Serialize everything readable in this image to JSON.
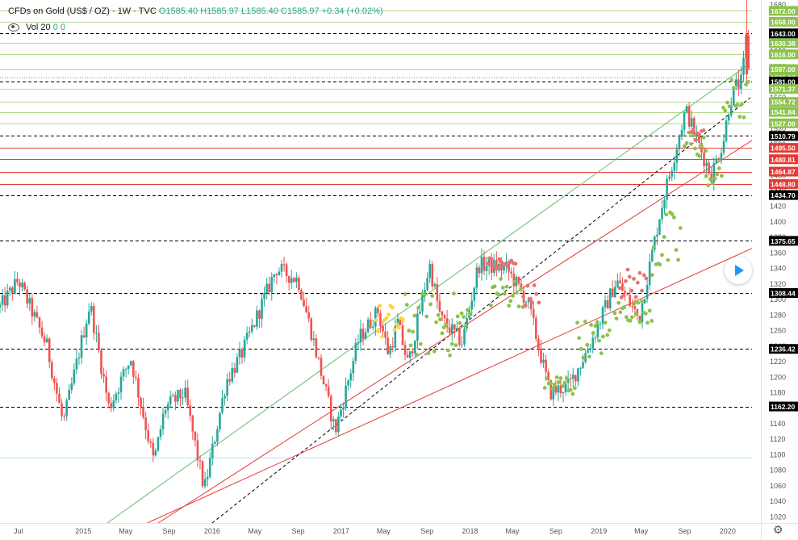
{
  "header": {
    "symbol": "CFDs on Gold (US$ / OZ) · 1W · TVC",
    "ohlc": "O1585.40  H1585.97  L1585.40  C1585.97  +0.34 (+0.02%)",
    "vol_label": "Vol 20",
    "vol_values": "0  0"
  },
  "colors": {
    "up": "#26a69a",
    "down": "#ef5350",
    "green_line": "#4caf50",
    "red_line": "#e53935",
    "price_tag": "#000000",
    "green_tag": "#8bc34a",
    "red_tag": "#e53935",
    "dot_green": "#8bc34a",
    "dot_red": "#e57373",
    "dot_yellow": "#fdd835"
  },
  "chart_data": {
    "type": "candlestick",
    "x_ticks": [
      {
        "label": "Jul",
        "date": "2014-07-01"
      },
      {
        "label": "2015",
        "date": "2015-01-01"
      },
      {
        "label": "May",
        "date": "2015-05-01"
      },
      {
        "label": "Sep",
        "date": "2015-09-01"
      },
      {
        "label": "2016",
        "date": "2016-01-01"
      },
      {
        "label": "May",
        "date": "2016-05-01"
      },
      {
        "label": "Sep",
        "date": "2016-09-01"
      },
      {
        "label": "2017",
        "date": "2017-01-01"
      },
      {
        "label": "May",
        "date": "2017-05-01"
      },
      {
        "label": "Sep",
        "date": "2017-09-01"
      },
      {
        "label": "2018",
        "date": "2018-01-01"
      },
      {
        "label": "May",
        "date": "2018-05-01"
      },
      {
        "label": "Sep",
        "date": "2018-09-01"
      },
      {
        "label": "2019",
        "date": "2019-01-01"
      },
      {
        "label": "May",
        "date": "2019-05-01"
      },
      {
        "label": "Sep",
        "date": "2019-09-01"
      },
      {
        "label": "2020",
        "date": "2020-01-01"
      }
    ],
    "y_ticks": [
      1020,
      1040,
      1060,
      1080,
      1100,
      1120,
      1140,
      1160,
      1180,
      1200,
      1220,
      1240,
      1260,
      1280,
      1300,
      1320,
      1340,
      1360,
      1380,
      1400,
      1420,
      1440,
      1460,
      1480,
      1500,
      1520,
      1540,
      1560,
      1580,
      1600,
      1620,
      1640,
      1660,
      1680
    ],
    "ylim": [
      1012,
      1686
    ],
    "xlim": [
      "2014-05-10",
      "2020-03-10"
    ],
    "close_path": [
      [
        "2014-05-10",
        1290
      ],
      [
        "2014-07-01",
        1325
      ],
      [
        "2014-09-20",
        1240
      ],
      [
        "2014-11-05",
        1140
      ],
      [
        "2015-01-20",
        1295
      ],
      [
        "2015-03-15",
        1160
      ],
      [
        "2015-05-15",
        1225
      ],
      [
        "2015-07-20",
        1090
      ],
      [
        "2015-08-20",
        1160
      ],
      [
        "2015-10-15",
        1180
      ],
      [
        "2015-12-10",
        1055
      ],
      [
        "2016-02-10",
        1195
      ],
      [
        "2016-03-25",
        1230
      ],
      [
        "2016-07-01",
        1340
      ],
      [
        "2016-09-01",
        1325
      ],
      [
        "2016-10-10",
        1255
      ],
      [
        "2016-12-15",
        1130
      ],
      [
        "2017-02-20",
        1250
      ],
      [
        "2017-04-15",
        1285
      ],
      [
        "2017-05-15",
        1230
      ],
      [
        "2017-06-10",
        1270
      ],
      [
        "2017-07-10",
        1215
      ],
      [
        "2017-09-08",
        1345
      ],
      [
        "2017-10-10",
        1275
      ],
      [
        "2017-12-10",
        1245
      ],
      [
        "2018-01-25",
        1345
      ],
      [
        "2018-04-15",
        1340
      ],
      [
        "2018-06-15",
        1295
      ],
      [
        "2018-08-15",
        1180
      ],
      [
        "2018-10-10",
        1190
      ],
      [
        "2018-12-10",
        1245
      ],
      [
        "2019-02-20",
        1325
      ],
      [
        "2019-04-25",
        1275
      ],
      [
        "2019-06-25",
        1415
      ],
      [
        "2019-09-04",
        1545
      ],
      [
        "2019-10-15",
        1495
      ],
      [
        "2019-11-15",
        1460
      ],
      [
        "2019-12-20",
        1505
      ],
      [
        "2020-01-07",
        1555
      ],
      [
        "2020-01-25",
        1575
      ],
      [
        "2020-02-10",
        1580
      ],
      [
        "2020-02-24",
        1643
      ],
      [
        "2020-03-02",
        1586
      ]
    ],
    "horizontal_levels": [
      {
        "value": "1672.00",
        "kind": "green",
        "style": "solid"
      },
      {
        "value": "1658.00",
        "kind": "green",
        "style": "solid"
      },
      {
        "value": "1643.00",
        "kind": "black",
        "style": "dashed"
      },
      {
        "value": "1630.38",
        "kind": "green",
        "style": "solid"
      },
      {
        "value": "1616.00",
        "kind": "green",
        "style": "solid"
      },
      {
        "value": "1597.00",
        "kind": "green",
        "style": "solid"
      },
      {
        "value": "1585.97",
        "kind": "current",
        "style": "dotted"
      },
      {
        "value": "1581.00",
        "kind": "black",
        "style": "dashed"
      },
      {
        "value": "1571.37",
        "kind": "green",
        "style": "solid"
      },
      {
        "value": "1554.72",
        "kind": "green",
        "style": "solid"
      },
      {
        "value": "1541.84",
        "kind": "green",
        "style": "solid"
      },
      {
        "value": "1527.09",
        "kind": "green",
        "style": "solid"
      },
      {
        "value": "1510.79",
        "kind": "black",
        "style": "dashed"
      },
      {
        "value": "1495.50",
        "kind": "red",
        "style": "solid"
      },
      {
        "value": "1480.81",
        "kind": "red",
        "style": "solid"
      },
      {
        "value": "1464.87",
        "kind": "red",
        "style": "solid"
      },
      {
        "value": "1448.80",
        "kind": "red",
        "style": "solid"
      },
      {
        "value": "1434.70",
        "kind": "black",
        "style": "dashed"
      },
      {
        "value": "1375.65",
        "kind": "black",
        "style": "dashed"
      },
      {
        "value": "1308.44",
        "kind": "black",
        "style": "dashed"
      },
      {
        "value": "1236.42",
        "kind": "black",
        "style": "dashed"
      },
      {
        "value": "1162.20",
        "kind": "black",
        "style": "dashed"
      }
    ],
    "trend_lines": [
      {
        "color": "green",
        "style": "solid",
        "p1": [
          "2015-03-10",
          1012
        ],
        "p2": [
          "2020-02-20",
          1600
        ]
      },
      {
        "color": "black",
        "style": "dashed",
        "p1": [
          "2016-01-01",
          1012
        ],
        "p2": [
          "2020-03-05",
          1560
        ]
      },
      {
        "color": "red",
        "style": "solid",
        "p1": [
          "2015-08-01",
          1012
        ],
        "p2": [
          "2020-03-10",
          1505
        ]
      },
      {
        "color": "red",
        "style": "solid",
        "p1": [
          "2015-07-01",
          1012
        ],
        "p2": [
          "2020-03-10",
          1366
        ]
      }
    ],
    "dot_clusters": [
      {
        "color": "yellow",
        "start": "2017-04-10",
        "end": "2017-06-25",
        "low": 1245,
        "high": 1295
      },
      {
        "color": "green",
        "start": "2017-07-01",
        "end": "2017-12-31",
        "low": 1225,
        "high": 1310
      },
      {
        "color": "green",
        "start": "2018-03-01",
        "end": "2018-05-31",
        "low": 1290,
        "high": 1330
      },
      {
        "color": "red",
        "start": "2018-02-20",
        "end": "2018-05-10",
        "low": 1335,
        "high": 1355
      },
      {
        "color": "red",
        "start": "2018-06-01",
        "end": "2018-07-15",
        "low": 1290,
        "high": 1320
      },
      {
        "color": "green",
        "start": "2018-08-01",
        "end": "2018-10-25",
        "low": 1175,
        "high": 1205
      },
      {
        "color": "green",
        "start": "2018-11-01",
        "end": "2019-01-31",
        "low": 1225,
        "high": 1275
      },
      {
        "color": "green",
        "start": "2019-02-15",
        "end": "2019-05-31",
        "low": 1270,
        "high": 1300
      },
      {
        "color": "red",
        "start": "2019-03-01",
        "end": "2019-05-15",
        "low": 1300,
        "high": 1340
      },
      {
        "color": "green",
        "start": "2019-06-01",
        "end": "2019-08-20",
        "low": 1325,
        "high": 1415
      },
      {
        "color": "green",
        "start": "2019-09-01",
        "end": "2019-10-31",
        "low": 1480,
        "high": 1520
      },
      {
        "color": "red",
        "start": "2019-09-20",
        "end": "2019-10-25",
        "low": 1505,
        "high": 1520
      },
      {
        "color": "green",
        "start": "2019-11-01",
        "end": "2019-12-15",
        "low": 1445,
        "high": 1470
      },
      {
        "color": "green",
        "start": "2019-12-20",
        "end": "2020-02-28",
        "low": 1525,
        "high": 1585
      }
    ]
  }
}
